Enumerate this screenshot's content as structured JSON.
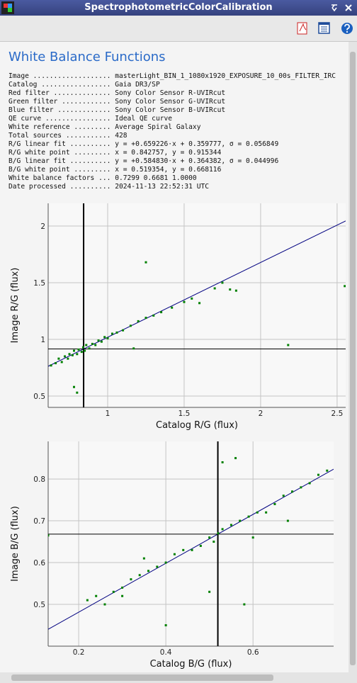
{
  "window_title": "SpectrophotometricColorCalibration",
  "heading": "White Balance Functions",
  "info_rows": [
    [
      "Image ...................",
      "masterLight_BIN_1_1080x1920_EXPOSURE_10_00s_FILTER_IRC"
    ],
    [
      "Catalog .................",
      "Gaia DR3/SP"
    ],
    [
      "Red filter ..............",
      "Sony Color Sensor R-UVIRcut"
    ],
    [
      "Green filter ............",
      "Sony Color Sensor G-UVIRcut"
    ],
    [
      "Blue filter .............",
      "Sony Color Sensor B-UVIRcut"
    ],
    [
      "QE curve ................",
      "Ideal QE curve"
    ],
    [
      "White reference .........",
      "Average Spiral Galaxy"
    ],
    [
      "Total sources ...........",
      "428"
    ],
    [
      "R/G linear fit ..........",
      "y = +0.659226·x + 0.359777, σ = 0.056849"
    ],
    [
      "R/G white point .........",
      "x = 0.842757, y = 0.915344"
    ],
    [
      "B/G linear fit ..........",
      "y = +0.584830·x + 0.364382, σ = 0.044996"
    ],
    [
      "B/G white point .........",
      "x = 0.519354, y = 0.668116"
    ],
    [
      "White balance factors ...",
      "0.7299 0.6681 1.0000"
    ],
    [
      "Date processed ..........",
      "2024-11-13 22:52:31 UTC"
    ]
  ],
  "chart_data": [
    {
      "type": "scatter",
      "xlabel": "Catalog R/G (flux)",
      "ylabel": "Image R/G (flux)",
      "color": "#008000",
      "fit_color": "#000080",
      "ref_color": "#000000",
      "grid": true,
      "xlim": [
        0.611,
        2.556
      ],
      "ylim": [
        0.4,
        2.2
      ],
      "xticks": [
        1,
        1.5,
        2,
        2.5
      ],
      "yticks": [
        0.5,
        1,
        1.5,
        2
      ],
      "fit_line": {
        "slope": 0.659226,
        "intercept": 0.359777
      },
      "reference_lines": {
        "x": 0.842757,
        "y": 0.915344
      },
      "x": [
        0.63,
        0.66,
        0.68,
        0.7,
        0.72,
        0.74,
        0.75,
        0.77,
        0.78,
        0.8,
        0.81,
        0.83,
        0.84,
        0.85,
        0.86,
        0.88,
        0.9,
        0.92,
        0.94,
        0.96,
        0.98,
        1.0,
        1.03,
        1.06,
        1.1,
        1.15,
        1.2,
        1.25,
        1.3,
        1.35,
        1.42,
        1.5,
        1.55,
        1.6,
        1.7,
        1.75,
        1.8,
        1.84,
        1.25,
        2.18,
        2.55,
        0.78,
        0.8,
        1.17
      ],
      "values": [
        0.77,
        0.79,
        0.83,
        0.8,
        0.85,
        0.83,
        0.87,
        0.86,
        0.9,
        0.87,
        0.91,
        0.89,
        0.93,
        0.9,
        0.95,
        0.92,
        0.96,
        0.95,
        0.99,
        0.98,
        1.02,
        1.01,
        1.05,
        1.06,
        1.08,
        1.12,
        1.16,
        1.19,
        1.21,
        1.24,
        1.28,
        1.33,
        1.36,
        1.32,
        1.45,
        1.5,
        1.44,
        1.43,
        1.68,
        0.95,
        1.47,
        0.58,
        0.53,
        0.92
      ]
    },
    {
      "type": "scatter",
      "xlabel": "Catalog B/G (flux)",
      "ylabel": "Image B/G (flux)",
      "color": "#008000",
      "fit_color": "#000080",
      "ref_color": "#000000",
      "grid": true,
      "xlim": [
        0.13,
        0.785
      ],
      "ylim": [
        0.4,
        0.89
      ],
      "xticks": [
        0.2,
        0.4,
        0.6
      ],
      "yticks": [
        0.5,
        0.6,
        0.7,
        0.8
      ],
      "fit_line": {
        "slope": 0.58483,
        "intercept": 0.364382
      },
      "reference_lines": {
        "x": 0.519354,
        "y": 0.668116
      },
      "x": [
        0.22,
        0.24,
        0.26,
        0.28,
        0.3,
        0.32,
        0.34,
        0.36,
        0.38,
        0.4,
        0.42,
        0.44,
        0.46,
        0.48,
        0.5,
        0.51,
        0.52,
        0.53,
        0.55,
        0.57,
        0.59,
        0.61,
        0.63,
        0.65,
        0.67,
        0.69,
        0.71,
        0.73,
        0.75,
        0.77,
        0.35,
        0.6,
        0.68,
        0.3,
        0.4,
        0.58,
        0.53,
        0.56,
        0.13,
        0.5
      ],
      "values": [
        0.51,
        0.52,
        0.5,
        0.53,
        0.54,
        0.56,
        0.57,
        0.58,
        0.59,
        0.6,
        0.62,
        0.63,
        0.63,
        0.64,
        0.66,
        0.65,
        0.67,
        0.68,
        0.69,
        0.7,
        0.71,
        0.72,
        0.72,
        0.74,
        0.76,
        0.77,
        0.78,
        0.79,
        0.81,
        0.82,
        0.61,
        0.66,
        0.7,
        0.52,
        0.45,
        0.5,
        0.84,
        0.85,
        0.665,
        0.53
      ]
    }
  ]
}
